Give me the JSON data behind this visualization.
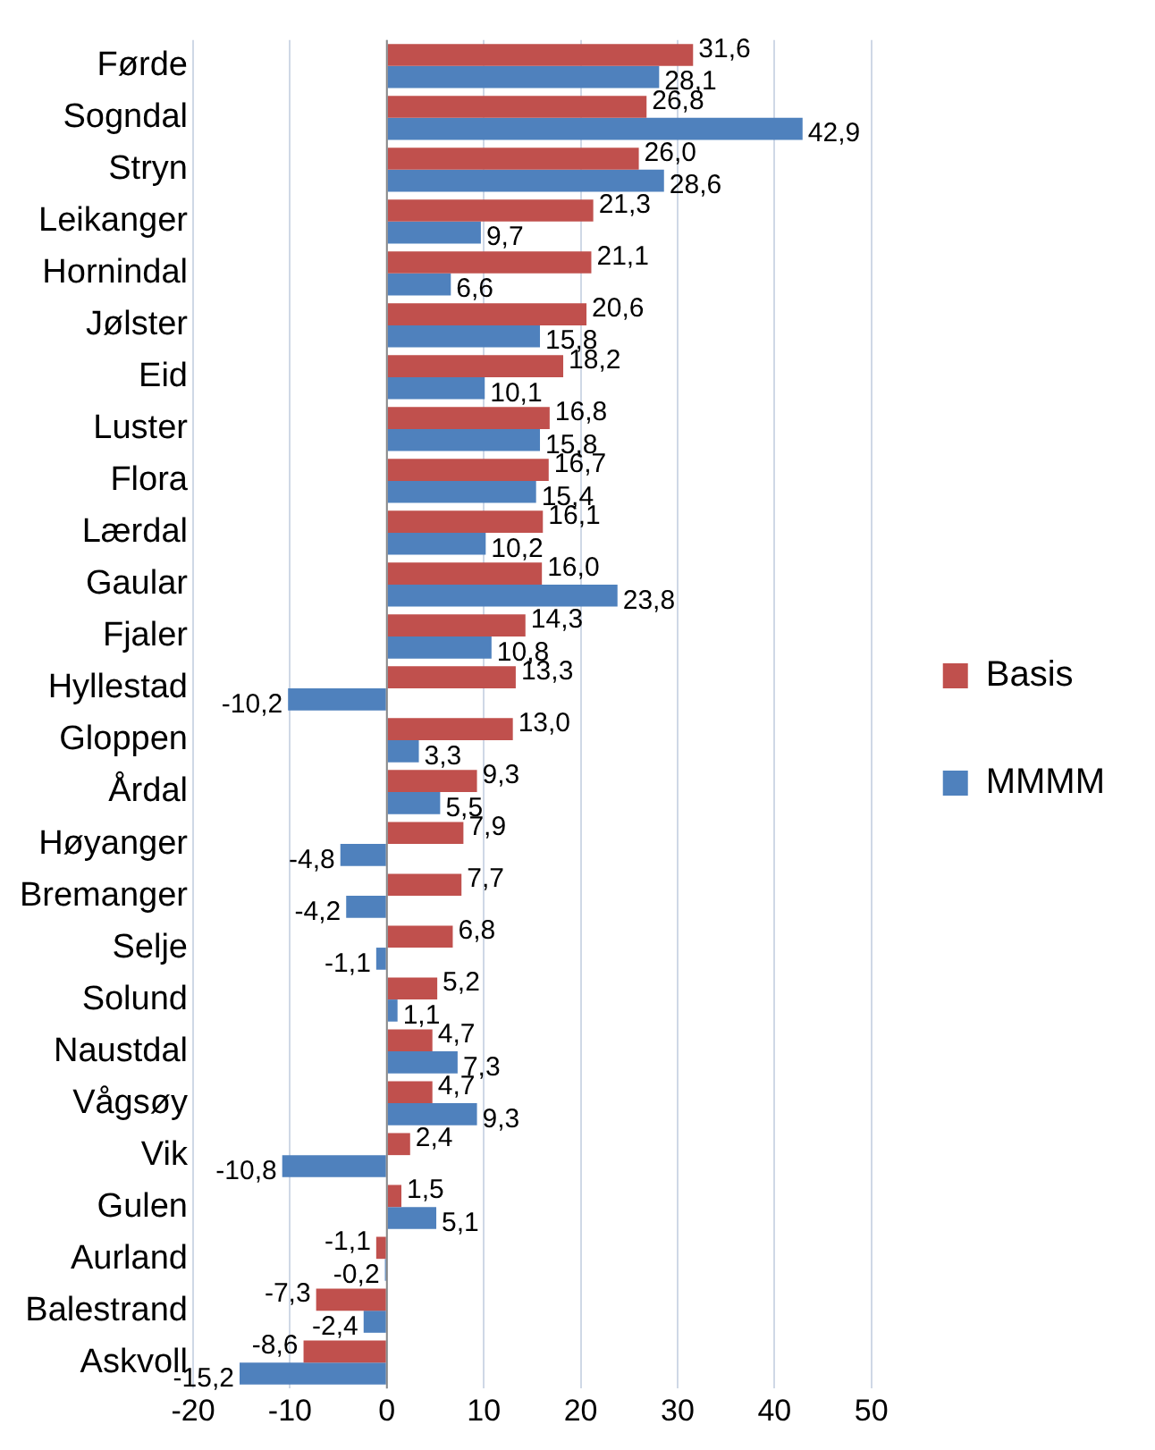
{
  "chart_data": {
    "type": "bar",
    "orientation": "horizontal",
    "categories": [
      "Førde",
      "Sogndal",
      "Stryn",
      "Leikanger",
      "Hornindal",
      "Jølster",
      "Eid",
      "Luster",
      "Flora",
      "Lærdal",
      "Gaular",
      "Fjaler",
      "Hyllestad",
      "Gloppen",
      "Årdal",
      "Høyanger",
      "Bremanger",
      "Selje",
      "Solund",
      "Naustdal",
      "Vågsøy",
      "Vik",
      "Gulen",
      "Aurland",
      "Balestrand",
      "Askvoll"
    ],
    "series": [
      {
        "name": "Basis",
        "color": "#c0504d",
        "values": [
          31.6,
          26.8,
          26.0,
          21.3,
          21.1,
          20.6,
          18.2,
          16.8,
          16.7,
          16.1,
          16.0,
          14.3,
          13.3,
          13.0,
          9.3,
          7.9,
          7.7,
          6.8,
          5.2,
          4.7,
          4.7,
          2.4,
          1.5,
          -1.1,
          -7.3,
          -8.6
        ],
        "value_labels": [
          "31,6",
          "26,8",
          "26,0",
          "21,3",
          "21,1",
          "20,6",
          "18,2",
          "16,8",
          "16,7",
          "16,1",
          "16,0",
          "14,3",
          "13,3",
          "13,0",
          "9,3",
          "7,9",
          "7,7",
          "6,8",
          "5,2",
          "4,7",
          "4,7",
          "2,4",
          "1,5",
          "-1,1",
          "-7,3",
          "-8,6"
        ]
      },
      {
        "name": "MMMM",
        "color": "#4f81bd",
        "values": [
          28.1,
          42.9,
          28.6,
          9.7,
          6.6,
          15.8,
          10.1,
          15.8,
          15.4,
          10.2,
          23.8,
          10.8,
          -10.2,
          3.3,
          5.5,
          -4.8,
          -4.2,
          -1.1,
          1.1,
          7.3,
          9.3,
          -10.8,
          5.1,
          -0.2,
          -2.4,
          -15.2
        ],
        "value_labels": [
          "28,1",
          "42,9",
          "28,6",
          "9,7",
          "6,6",
          "15,8",
          "10,1",
          "15,8",
          "15,4",
          "10,2",
          "23,8",
          "10,8",
          "-10,2",
          "3,3",
          "5,5",
          "-4,8",
          "-4,2",
          "-1,1",
          "1,1",
          "7,3",
          "9,3",
          "-10,8",
          "5,1",
          "-0,2",
          "-2,4",
          "-15,2"
        ]
      }
    ],
    "xlim": [
      -20,
      50
    ],
    "xticks": [
      -20,
      -10,
      0,
      10,
      20,
      30,
      40,
      50
    ],
    "grid": "x",
    "legend": "right"
  }
}
